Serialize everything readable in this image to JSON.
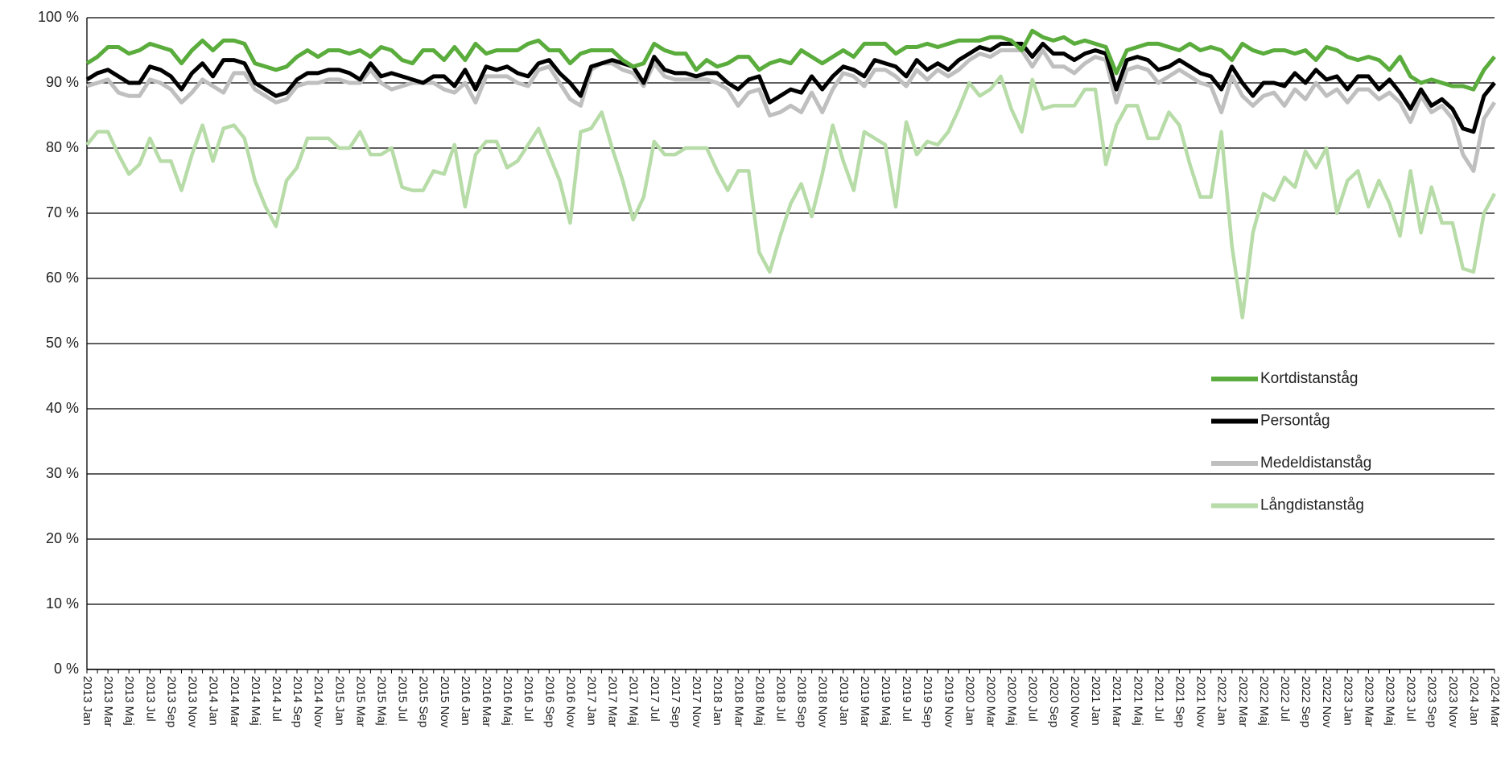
{
  "chart_data": {
    "type": "line",
    "categories": [
      "2013 Jan",
      null,
      "2013 Mar",
      null,
      "2013 Maj",
      null,
      "2013 Jul",
      null,
      "2013 Sep",
      null,
      "2013 Nov",
      null,
      "2014 Jan",
      null,
      "2014 Mar",
      null,
      "2014 Maj",
      null,
      "2014 Jul",
      null,
      "2014 Sep",
      null,
      "2014 Nov",
      null,
      "2015 Jan",
      null,
      "2015 Mar",
      null,
      "2015 Maj",
      null,
      "2015 Jul",
      null,
      "2015 Sep",
      null,
      "2015 Nov",
      null,
      "2016 Jan",
      null,
      "2016 Mar",
      null,
      "2016 Maj",
      null,
      "2016 Jul",
      null,
      "2016 Sep",
      null,
      "2016 Nov",
      null,
      "2017 Jan",
      null,
      "2017 Mar",
      null,
      "2017 Maj",
      null,
      "2017 Jul",
      null,
      "2017 Sep",
      null,
      "2017 Nov",
      null,
      "2018 Jan",
      null,
      "2018 Mar",
      null,
      "2018 Maj",
      null,
      "2018 Jul",
      null,
      "2018 Sep",
      null,
      "2018 Nov",
      null,
      "2019 Jan",
      null,
      "2019 Mar",
      null,
      "2019 Maj",
      null,
      "2019 Jul",
      null,
      "2019 Sep",
      null,
      "2019 Nov",
      null,
      "2020 Jan",
      null,
      "2020 Mar",
      null,
      "2020 Maj",
      null,
      "2020 Jul",
      null,
      "2020 Sep",
      null,
      "2020 Nov",
      null,
      "2021 Jan",
      null,
      "2021 Mar",
      null,
      "2021 Maj",
      null,
      "2021 Jul",
      null,
      "2021 Sep",
      null,
      "2021 Nov",
      null,
      "2022 Jan",
      null,
      "2022 Mar",
      null,
      "2022 Maj",
      null,
      "2022 Jul",
      null,
      "2022 Sep",
      null,
      "2022 Nov",
      null,
      "2023 Jan",
      null,
      "2023 Mar",
      null,
      "2023 Maj",
      null,
      "2023 Jul",
      null,
      "2023 Sep",
      null,
      "2023 Nov",
      null,
      "2024 Jan",
      null,
      "2024 Mar"
    ],
    "series": [
      {
        "name": "Kortdistanståg",
        "color": "#5aac3c",
        "values": [
          93,
          94,
          95.5,
          95.5,
          94.5,
          95,
          96,
          95.5,
          95,
          93,
          95,
          96.5,
          95,
          96.5,
          96.5,
          96,
          93,
          92.5,
          92,
          92.5,
          94,
          95,
          94,
          95,
          95,
          94.5,
          95,
          94,
          95.5,
          95,
          93.5,
          93,
          95,
          95,
          93.5,
          95.5,
          93.5,
          96,
          94.5,
          95,
          95,
          95,
          96,
          96.5,
          95,
          95,
          93,
          94.5,
          95,
          95,
          95,
          93.5,
          92.5,
          93,
          96,
          95,
          94.5,
          94.5,
          92,
          93.5,
          92.5,
          93,
          94,
          94,
          92,
          93,
          93.5,
          93,
          95,
          94,
          93,
          94,
          95,
          94,
          96,
          96,
          96,
          94.5,
          95.5,
          95.5,
          96,
          95.5,
          96,
          96.5,
          96.5,
          96.5,
          97,
          97,
          96.5,
          95,
          98,
          97,
          96.5,
          97,
          96,
          96.5,
          96,
          95.5,
          91.5,
          95,
          95.5,
          96,
          96,
          95.5,
          95,
          96,
          95,
          95.5,
          95,
          93.5,
          96,
          95,
          94.5,
          95,
          95,
          94.5,
          95,
          93.5,
          95.5,
          95,
          94,
          93.5,
          94,
          93.5,
          92,
          94,
          91,
          90,
          90.5,
          90,
          89.5,
          89.5,
          89,
          92,
          94
        ]
      },
      {
        "name": "Persontåg",
        "color": "#000000",
        "values": [
          90.5,
          91.5,
          92,
          91,
          90,
          90,
          92.5,
          92,
          91,
          89,
          91.5,
          93,
          91,
          93.5,
          93.5,
          93,
          90,
          89,
          88,
          88.5,
          90.5,
          91.5,
          91.5,
          92,
          92,
          91.5,
          90.5,
          93,
          91,
          91.5,
          91,
          90.5,
          90,
          91,
          91,
          89.5,
          92,
          89,
          92.5,
          92,
          92.5,
          91.5,
          91,
          93,
          93.5,
          91.5,
          90,
          88,
          92.5,
          93,
          93.5,
          93,
          92.5,
          90,
          94,
          92,
          91.5,
          91.5,
          91,
          91.5,
          91.5,
          90,
          89,
          90.5,
          91,
          87,
          88,
          89,
          88.5,
          91,
          89,
          91,
          92.5,
          92,
          91,
          93.5,
          93,
          92.5,
          91,
          93.5,
          92,
          93,
          92,
          93.5,
          94.5,
          95.5,
          95,
          96,
          96,
          96,
          94,
          96,
          94.5,
          94.5,
          93.5,
          94.5,
          95,
          94.5,
          89,
          93.5,
          94,
          93.5,
          92,
          92.5,
          93.5,
          92.5,
          91.5,
          91,
          89,
          92.5,
          90,
          88,
          90,
          90,
          89.5,
          91.5,
          90,
          92,
          90.5,
          91,
          89,
          91,
          91,
          89,
          90.5,
          88.5,
          86,
          89,
          86.5,
          87.5,
          86,
          83,
          82.5,
          88,
          90
        ]
      },
      {
        "name": "Medeldistanståg",
        "color": "#bfbfbf",
        "values": [
          89.5,
          90,
          90.5,
          88.5,
          88,
          88,
          90.5,
          90,
          89,
          87,
          88.5,
          90.5,
          89.5,
          88.5,
          91.5,
          91.5,
          89,
          88,
          87,
          87.5,
          89.5,
          90,
          90,
          90.5,
          90.5,
          90,
          90,
          92,
          90,
          89,
          89.5,
          90,
          90,
          90,
          89,
          88.5,
          90,
          87,
          91,
          91,
          91,
          90,
          89.5,
          92,
          92.5,
          90,
          87.5,
          86.5,
          92,
          93,
          93,
          92,
          91.5,
          89.5,
          93,
          91,
          90.5,
          90.5,
          90.5,
          90.5,
          90,
          89,
          86.5,
          88.5,
          89,
          85,
          85.5,
          86.5,
          85.5,
          88.5,
          85.5,
          89,
          91.5,
          91,
          89.5,
          92,
          92,
          91,
          89.5,
          92,
          90.5,
          92,
          91,
          92,
          93.5,
          94.5,
          94,
          95,
          95,
          95,
          92.5,
          95,
          92.5,
          92.5,
          91.5,
          93,
          94,
          93.5,
          87,
          92,
          92.5,
          92,
          90,
          91,
          92,
          91,
          90,
          89.5,
          85.5,
          91,
          88,
          86.5,
          88,
          88.5,
          86.5,
          89,
          87.5,
          90,
          88,
          89,
          87,
          89,
          89,
          87.5,
          88.5,
          87,
          84,
          88,
          85.5,
          86.5,
          84.5,
          79,
          76.5,
          84.5,
          87
        ]
      },
      {
        "name": "Långdistanståg",
        "color": "#b7dca8",
        "values": [
          80.5,
          82.5,
          82.5,
          79,
          76,
          77.5,
          81.5,
          78,
          78,
          73.5,
          79,
          83.5,
          78,
          83,
          83.5,
          81.5,
          75,
          71,
          68,
          75,
          77,
          81.5,
          81.5,
          81.5,
          80,
          80,
          82.5,
          79,
          79,
          80,
          74,
          73.5,
          73.5,
          76.5,
          76,
          80.5,
          71,
          79,
          81,
          81,
          77,
          78,
          80.5,
          83,
          79,
          75,
          68.5,
          82.5,
          83,
          85.5,
          80,
          75,
          69,
          72.5,
          81,
          79,
          79,
          80,
          80,
          80,
          76.5,
          73.5,
          76.5,
          76.5,
          64,
          61,
          66.5,
          71.5,
          74.5,
          69.5,
          76,
          83.5,
          78,
          73.5,
          82.5,
          81.5,
          80.5,
          71,
          84,
          79,
          81,
          80.5,
          82.5,
          86,
          90,
          88,
          89,
          91,
          86,
          82.5,
          90.5,
          86,
          86.5,
          86.5,
          86.5,
          89,
          89,
          77.5,
          83.5,
          86.5,
          86.5,
          81.5,
          81.5,
          85.5,
          83.5,
          77.5,
          72.5,
          72.5,
          82.5,
          65,
          54,
          67,
          73,
          72,
          75.5,
          74,
          79.5,
          77,
          80,
          70,
          75,
          76.5,
          71,
          75,
          71.5,
          66.5,
          76.5,
          67,
          74,
          68.5,
          68.5,
          61.5,
          61,
          70,
          73
        ]
      }
    ],
    "ylim": [
      0,
      100
    ],
    "yticks": [
      {
        "value": 0,
        "label": "0 %"
      },
      {
        "value": 10,
        "label": "10 %"
      },
      {
        "value": 20,
        "label": "20 %"
      },
      {
        "value": 30,
        "label": "30 %"
      },
      {
        "value": 40,
        "label": "40 %"
      },
      {
        "value": 50,
        "label": "50 %"
      },
      {
        "value": 60,
        "label": "60 %"
      },
      {
        "value": 70,
        "label": "70 %"
      },
      {
        "value": 80,
        "label": "80 %"
      },
      {
        "value": 90,
        "label": "90 %"
      },
      {
        "value": 100,
        "label": "100 %"
      }
    ],
    "grid": true
  }
}
